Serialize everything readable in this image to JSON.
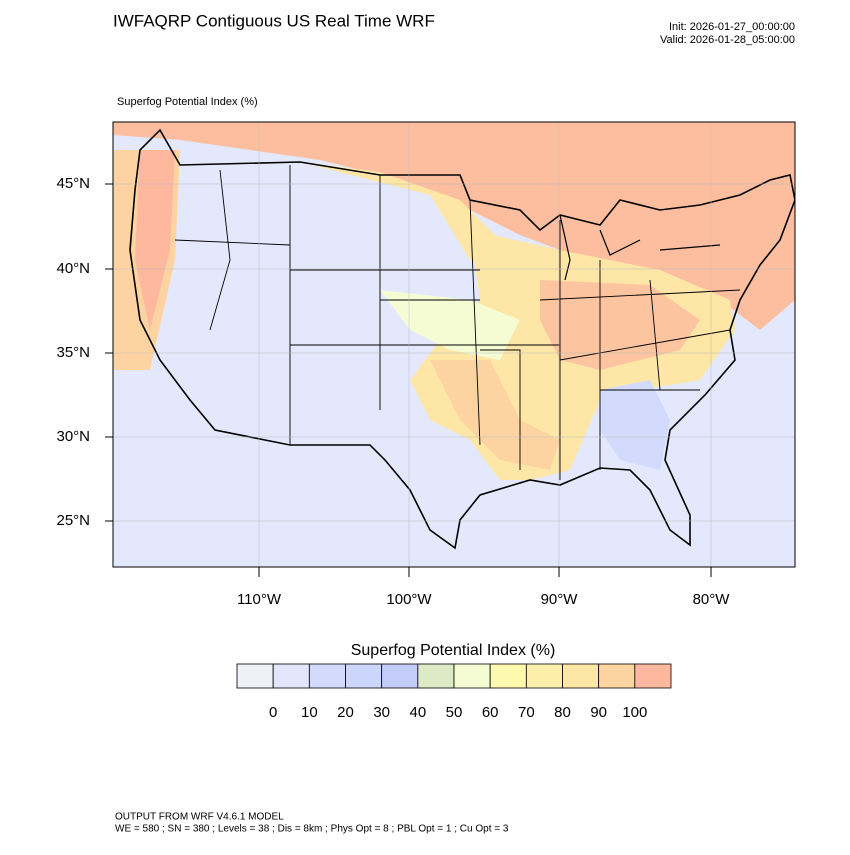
{
  "header": {
    "title": "IWFAQRP Contiguous US Real Time WRF",
    "init": "Init: 2026-01-27_00:00:00",
    "valid": "Valid: 2026-01-28_05:00:00"
  },
  "map": {
    "subtitle": "Superfog Potential Index   (%)",
    "lat_labels": [
      "45°N",
      "40°N",
      "35°N",
      "30°N",
      "25°N"
    ],
    "lon_labels": [
      "110°W",
      "100°W",
      "90°W",
      "80°W"
    ]
  },
  "colorbar": {
    "title": "Superfog Potential Index  (%)",
    "colors": [
      "#eef1f8",
      "#e1e6fc",
      "#d3dbfc",
      "#ccd5fc",
      "#c4ccfb",
      "#dcebc6",
      "#f5fcd4",
      "#fdfab0",
      "#fdeeaa",
      "#fde6a6",
      "#fdd4a1",
      "#fdb89e"
    ],
    "labels": [
      0,
      10,
      20,
      30,
      40,
      50,
      60,
      70,
      80,
      90,
      100
    ]
  },
  "footer": {
    "line1": "OUTPUT FROM WRF V4.6.1 MODEL",
    "line2": "WE = 580 ; SN = 380 ; Levels = 38 ; Dis = 8km ; Phys Opt = 8 ; PBL Opt = 1 ; Cu Opt = 3"
  }
}
